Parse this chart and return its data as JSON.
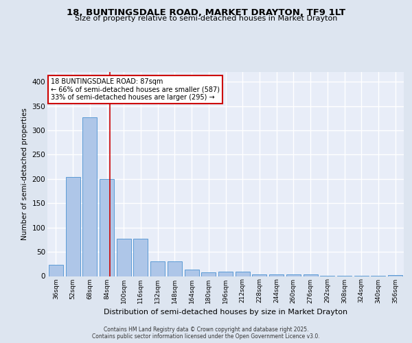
{
  "title": "18, BUNTINGSDALE ROAD, MARKET DRAYTON, TF9 1LT",
  "subtitle": "Size of property relative to semi-detached houses in Market Drayton",
  "xlabel": "Distribution of semi-detached houses by size in Market Drayton",
  "ylabel": "Number of semi-detached properties",
  "footer1": "Contains HM Land Registry data © Crown copyright and database right 2025.",
  "footer2": "Contains public sector information licensed under the Open Government Licence v3.0.",
  "categories": [
    "36sqm",
    "52sqm",
    "68sqm",
    "84sqm",
    "100sqm",
    "116sqm",
    "132sqm",
    "148sqm",
    "164sqm",
    "180sqm",
    "196sqm",
    "212sqm",
    "228sqm",
    "244sqm",
    "260sqm",
    "276sqm",
    "292sqm",
    "308sqm",
    "324sqm",
    "340sqm",
    "356sqm"
  ],
  "values": [
    23,
    204,
    327,
    200,
    77,
    77,
    30,
    30,
    14,
    8,
    9,
    9,
    3,
    3,
    4,
    3,
    1,
    1,
    1,
    1,
    2
  ],
  "bar_color": "#aec6e8",
  "bar_edgecolor": "#5b9bd5",
  "annotation_box_edgecolor": "#cc0000",
  "vertical_line_color": "#cc0000",
  "ylim": [
    0,
    420
  ],
  "yticks": [
    0,
    50,
    100,
    150,
    200,
    250,
    300,
    350,
    400
  ],
  "background_color": "#dde5f0",
  "plot_background": "#e8edf8",
  "grid_color": "#ffffff",
  "pct_smaller": 66,
  "count_smaller": 587,
  "pct_larger": 33,
  "count_larger": 295,
  "ann_line1": "18 BUNTINGSDALE ROAD: 87sqm",
  "ann_line2": "← 66% of semi-detached houses are smaller (587)",
  "ann_line3": "33% of semi-detached houses are larger (295) →"
}
